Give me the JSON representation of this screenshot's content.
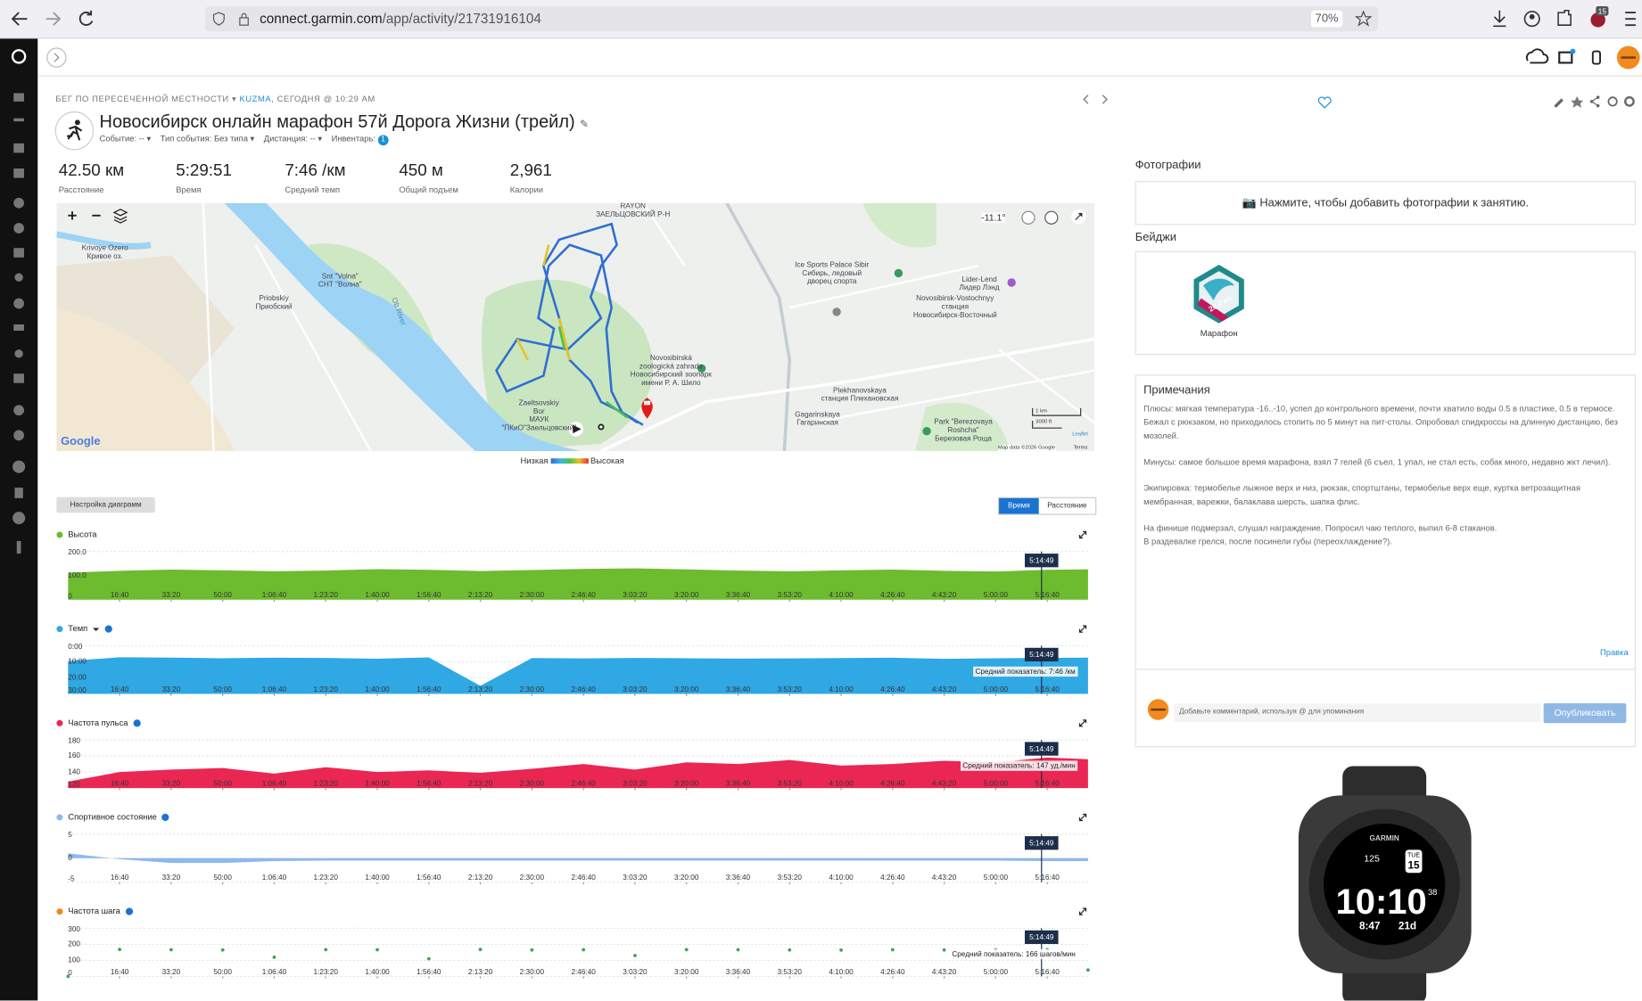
{
  "browser": {
    "url_host": "connect.garmin.com",
    "url_path": "/app/activity/21731916104",
    "zoom": "70%",
    "badge": "15"
  },
  "activity": {
    "breadcrumb": "БЕГ ПО ПЕРЕСЕЧЕННОЙ МЕСТНОСТИ",
    "user": "KUZMA",
    "date": ", СЕГОДНЯ @ 10:29 AM",
    "title": "Новосибирск онлайн марафон 57й Дорога Жизни (трейл)",
    "meta": [
      "Событие: --",
      "Тип события: Без типа",
      "Дистанция: --",
      "Инвентарь:"
    ],
    "gear_count": "1"
  },
  "stats": [
    {
      "value": "42.50 км",
      "label": "Расстояние"
    },
    {
      "value": "5:29:51",
      "label": "Время"
    },
    {
      "value": "7:46 /км",
      "label": "Средний темп"
    },
    {
      "value": "450 м",
      "label": "Общий подъем"
    },
    {
      "value": "2,961",
      "label": "Калории"
    }
  ],
  "map": {
    "labels": [
      "RAYON\nЗАЕЛЬЦОВСКИЙ Р-Н",
      "Krivoye Ozero\nКривое оз.",
      "Snt \"Volna\"\nСНТ \"Волна\"",
      "Priobskiy\nПриобский",
      "Ice Sports Palace Sibir\nСибирь, ледовый\nдворец спорта",
      "Lider-Lend\nЛидер Лэнд",
      "Novosibirsk-Vostochnyy\nстанция\nНовосибирск-Восточный",
      "Novosibirská\nzoologická zahrada\nНовосибирский зоопарк\nимени Р. А. Шило",
      "Zaeltsovskiy\nBor\nМАУК\n\"ПКиО\"Заельцовский\"",
      "Plekhanovskaya\nстанция Плехановская",
      "Gagarinskaya\nГагаринская",
      "Park \"Berezovaya\nRoshcha\"\nБерезовая Роща",
      "Ob River"
    ],
    "temperature": "-11.1°",
    "scale": [
      "1 km",
      "3000 ft"
    ],
    "attribution": "Map data ©2026 Google",
    "terms": "Terms",
    "leaflet": "Leaflet",
    "google": "Google",
    "legend_low": "Низкая",
    "legend_high": "Высокая"
  },
  "chart_settings": "Настройка диаграмм",
  "toggle": [
    "Время",
    "Расстояние"
  ],
  "chart_data": [
    {
      "type": "area",
      "title": "Высота",
      "color": "#6dbb2f",
      "x": [
        0,
        1000,
        2000,
        3000,
        4000,
        5000,
        6000,
        7000,
        8000,
        9000,
        10000,
        11000,
        12000,
        13000,
        14000,
        15000,
        16000,
        17000,
        18000,
        19000,
        19791
      ],
      "values": [
        112,
        120,
        125,
        122,
        118,
        121,
        127,
        124,
        119,
        123,
        128,
        130,
        126,
        121,
        118,
        122,
        125,
        120,
        117,
        124,
        126
      ],
      "xlim": [
        0,
        19791
      ],
      "xticks": [
        {
          "value": 1000,
          "label": "16:40"
        },
        {
          "value": 2000,
          "label": "33:20"
        },
        {
          "value": 3000,
          "label": "50:00"
        },
        {
          "value": 4000,
          "label": "1:06:40"
        },
        {
          "value": 5000,
          "label": "1:23:20"
        },
        {
          "value": 6000,
          "label": "1:40:00"
        },
        {
          "value": 7000,
          "label": "1:56:40"
        },
        {
          "value": 8000,
          "label": "2:13:20"
        },
        {
          "value": 9000,
          "label": "2:30:00"
        },
        {
          "value": 10000,
          "label": "2:46:40"
        },
        {
          "value": 11000,
          "label": "3:03:20"
        },
        {
          "value": 12000,
          "label": "3:20:00"
        },
        {
          "value": 13000,
          "label": "3:36:40"
        },
        {
          "value": 14000,
          "label": "3:53:20"
        },
        {
          "value": 15000,
          "label": "4:10:00"
        },
        {
          "value": 16000,
          "label": "4:26:40"
        },
        {
          "value": 17000,
          "label": "4:43:20"
        },
        {
          "value": 18000,
          "label": "5:00:00"
        },
        {
          "value": 19000,
          "label": "5:16:40"
        }
      ],
      "ylim": [
        0,
        200
      ],
      "yticks": [
        {
          "value": 200,
          "label": "200.0"
        },
        {
          "value": 100,
          "label": "100.0"
        },
        0
      ],
      "cursor": {
        "value": 18889,
        "label": "5:14:49"
      }
    },
    {
      "type": "area",
      "title": "Темп",
      "color": "#2fa8e4",
      "x": [
        0,
        1000,
        2000,
        3000,
        4000,
        5000,
        6000,
        7000,
        8000,
        9000,
        10000,
        11000,
        12000,
        13000,
        14000,
        15000,
        16000,
        17000,
        18000,
        19000,
        19791
      ],
      "values": [
        9.5,
        7.2,
        7.4,
        7.8,
        7.5,
        7.6,
        8.1,
        7.3,
        25,
        7.7,
        7.9,
        7.6,
        7.8,
        8.0,
        7.9,
        7.7,
        7.5,
        8.2,
        7.8,
        7.6,
        7.4
      ],
      "xlim": [
        0,
        19791
      ],
      "xticks": [
        {
          "value": 1000,
          "label": "16:40"
        },
        {
          "value": 2000,
          "label": "33:20"
        },
        {
          "value": 3000,
          "label": "50:00"
        },
        {
          "value": 4000,
          "label": "1:06:40"
        },
        {
          "value": 5000,
          "label": "1:23:20"
        },
        {
          "value": 6000,
          "label": "1:40:00"
        },
        {
          "value": 7000,
          "label": "1:56:40"
        },
        {
          "value": 8000,
          "label": "2:13:20"
        },
        {
          "value": 9000,
          "label": "2:30:00"
        },
        {
          "value": 10000,
          "label": "2:46:40"
        },
        {
          "value": 11000,
          "label": "3:03:20"
        },
        {
          "value": 12000,
          "label": "3:20:00"
        },
        {
          "value": 13000,
          "label": "3:36:40"
        },
        {
          "value": 14000,
          "label": "3:53:20"
        },
        {
          "value": 15000,
          "label": "4:10:00"
        },
        {
          "value": 16000,
          "label": "4:26:40"
        },
        {
          "value": 17000,
          "label": "4:43:20"
        },
        {
          "value": 18000,
          "label": "5:00:00"
        },
        {
          "value": 19000,
          "label": "5:16:40"
        }
      ],
      "ylim": [
        30,
        0
      ],
      "yticks": [
        {
          "value": 0,
          "label": "0:00"
        },
        {
          "value": 10,
          "label": "10:00"
        },
        {
          "value": 20,
          "label": "20:00"
        },
        {
          "value": 30,
          "label": "30:00"
        }
      ],
      "cursor": {
        "value": 18889,
        "label": "5:14:49"
      },
      "avg_label": "Средний показатель: 7:46 /км"
    },
    {
      "type": "area",
      "title": "Частота пульса",
      "color": "#ea2752",
      "x": [
        0,
        1000,
        2000,
        3000,
        4000,
        5000,
        6000,
        7000,
        8000,
        9000,
        10000,
        11000,
        12000,
        13000,
        14000,
        15000,
        16000,
        17000,
        18000,
        19000,
        19791
      ],
      "values": [
        128,
        140,
        143,
        145,
        138,
        146,
        140,
        142,
        139,
        144,
        150,
        143,
        152,
        150,
        155,
        148,
        150,
        154,
        152,
        158,
        156
      ],
      "xlim": [
        0,
        19791
      ],
      "xticks": [
        {
          "value": 1000,
          "label": "16:40"
        },
        {
          "value": 2000,
          "label": "33:20"
        },
        {
          "value": 3000,
          "label": "50:00"
        },
        {
          "value": 4000,
          "label": "1:06:40"
        },
        {
          "value": 5000,
          "label": "1:23:20"
        },
        {
          "value": 6000,
          "label": "1:40:00"
        },
        {
          "value": 7000,
          "label": "1:56:40"
        },
        {
          "value": 8000,
          "label": "2:13:20"
        },
        {
          "value": 9000,
          "label": "2:30:00"
        },
        {
          "value": 10000,
          "label": "2:46:40"
        },
        {
          "value": 11000,
          "label": "3:03:20"
        },
        {
          "value": 12000,
          "label": "3:20:00"
        },
        {
          "value": 13000,
          "label": "3:36:40"
        },
        {
          "value": 14000,
          "label": "3:53:20"
        },
        {
          "value": 15000,
          "label": "4:10:00"
        },
        {
          "value": 16000,
          "label": "4:26:40"
        },
        {
          "value": 17000,
          "label": "4:43:20"
        },
        {
          "value": 18000,
          "label": "5:00:00"
        },
        {
          "value": 19000,
          "label": "5:16:40"
        }
      ],
      "ylim": [
        120,
        180
      ],
      "yticks": [
        180,
        160,
        140,
        120
      ],
      "cursor": {
        "value": 18889,
        "label": "5:14:49"
      },
      "avg_label": "Средний показатель: 147 уд./мин"
    },
    {
      "type": "area",
      "title": "Спортивное состояние",
      "color": "#8db8ee",
      "x": [
        0,
        1000,
        2000,
        3000,
        4000,
        5000,
        6000,
        7000,
        8000,
        9000,
        10000,
        11000,
        12000,
        13000,
        14000,
        15000,
        16000,
        17000,
        18000,
        19000,
        19791
      ],
      "values": [
        1,
        -0.2,
        -1,
        -1,
        -0.6,
        -0.5,
        -0.5,
        -0.5,
        -0.5,
        -0.5,
        -0.5,
        -0.5,
        -0.5,
        -0.5,
        -0.5,
        -0.5,
        -0.5,
        -0.5,
        -0.5,
        -0.6,
        -0.6
      ],
      "xlim": [
        0,
        19791
      ],
      "xticks": [
        {
          "value": 1000,
          "label": "16:40"
        },
        {
          "value": 2000,
          "label": "33:20"
        },
        {
          "value": 3000,
          "label": "50:00"
        },
        {
          "value": 4000,
          "label": "1:06:40"
        },
        {
          "value": 5000,
          "label": "1:23:20"
        },
        {
          "value": 6000,
          "label": "1:40:00"
        },
        {
          "value": 7000,
          "label": "1:56:40"
        },
        {
          "value": 8000,
          "label": "2:13:20"
        },
        {
          "value": 9000,
          "label": "2:30:00"
        },
        {
          "value": 10000,
          "label": "2:46:40"
        },
        {
          "value": 11000,
          "label": "3:03:20"
        },
        {
          "value": 12000,
          "label": "3:20:00"
        },
        {
          "value": 13000,
          "label": "3:36:40"
        },
        {
          "value": 14000,
          "label": "3:53:20"
        },
        {
          "value": 15000,
          "label": "4:10:00"
        },
        {
          "value": 16000,
          "label": "4:26:40"
        },
        {
          "value": 17000,
          "label": "4:43:20"
        },
        {
          "value": 18000,
          "label": "5:00:00"
        },
        {
          "value": 19000,
          "label": "5:16:40"
        }
      ],
      "ylim": [
        -5,
        5
      ],
      "yticks": [
        5,
        0,
        -5
      ],
      "cursor": {
        "value": 18889,
        "label": "5:14:49"
      }
    },
    {
      "type": "scatter",
      "title": "Частота шага",
      "color": "#f08a1c",
      "point_color": "#3aa655",
      "x": [
        0,
        1000,
        2000,
        3000,
        4000,
        5000,
        6000,
        7000,
        8000,
        9000,
        10000,
        11000,
        12000,
        13000,
        14000,
        15000,
        16000,
        17000,
        18000,
        19000,
        19791
      ],
      "values": [
        0,
        168,
        166,
        165,
        120,
        167,
        166,
        110,
        168,
        165,
        166,
        130,
        167,
        166,
        165,
        164,
        166,
        165,
        166,
        167,
        40
      ],
      "xlim": [
        0,
        19791
      ],
      "xticks": [
        {
          "value": 1000,
          "label": "16:40"
        },
        {
          "value": 2000,
          "label": "33:20"
        },
        {
          "value": 3000,
          "label": "50:00"
        },
        {
          "value": 4000,
          "label": "1:06:40"
        },
        {
          "value": 5000,
          "label": "1:23:20"
        },
        {
          "value": 6000,
          "label": "1:40:00"
        },
        {
          "value": 7000,
          "label": "1:56:40"
        },
        {
          "value": 8000,
          "label": "2:13:20"
        },
        {
          "value": 9000,
          "label": "2:30:00"
        },
        {
          "value": 10000,
          "label": "2:46:40"
        },
        {
          "value": 11000,
          "label": "3:03:20"
        },
        {
          "value": 12000,
          "label": "3:20:00"
        },
        {
          "value": 13000,
          "label": "3:36:40"
        },
        {
          "value": 14000,
          "label": "3:53:20"
        },
        {
          "value": 15000,
          "label": "4:10:00"
        },
        {
          "value": 16000,
          "label": "4:26:40"
        },
        {
          "value": 17000,
          "label": "4:43:20"
        },
        {
          "value": 18000,
          "label": "5:00:00"
        },
        {
          "value": 19000,
          "label": "5:16:40"
        }
      ],
      "ylim": [
        0,
        300
      ],
      "yticks": [
        300,
        200,
        100,
        0
      ],
      "cursor": {
        "value": 18889,
        "label": "5:14:49"
      },
      "avg_label": "Средний показатель: 166 шагов/мин"
    }
  ],
  "side": {
    "photos_title": "Фотографии",
    "photos_cta": "Нажмите, чтобы добавить фотографии к занятию.",
    "badges_title": "Бейджи",
    "badge_text": "26.2 mi",
    "badge_name": "Марафон",
    "notes_title": "Примечания",
    "notes": [
      "Плюсы: мягкая температура -16..-10, успел до контрольного времени, почти хватило воды 0.5 в пластике, 0.5 в термосе. Бежал с рюкзаком, но приходилось стопить по 5 минут на пит-столы. Опробовал спидкроссы на длинную дистанцию, без мозолей.",
      "Минусы: самое большое время марафона, взял 7 гелей (6 съел, 1 упал, не стал есть, собак много, недавно жкт лечил).",
      "Экипировка: термобелье лыжное верх и низ, рюкзак, спортштаны, термобелье верх еще, куртка ветрозащитная мембранная, варежки, балаклава шерсть, шапка флис.",
      "На финише подмерзал, слушал награждение. Попросил чаю теплого, выпил 6-8 стаканов.\nВ раздевалке грелся, после посинели губы (переохлаждение?)."
    ],
    "edit": "Правка",
    "comment_placeholder": "Добавьте комментарий, используя @ для упоминания",
    "publish": "Опубликовать"
  },
  "watch": {
    "brand": "GARMIN",
    "hr": "125",
    "day": "TUE",
    "date": "15",
    "time": "10:10",
    "seconds": "38",
    "steps": "8:47",
    "battery": "21d"
  }
}
